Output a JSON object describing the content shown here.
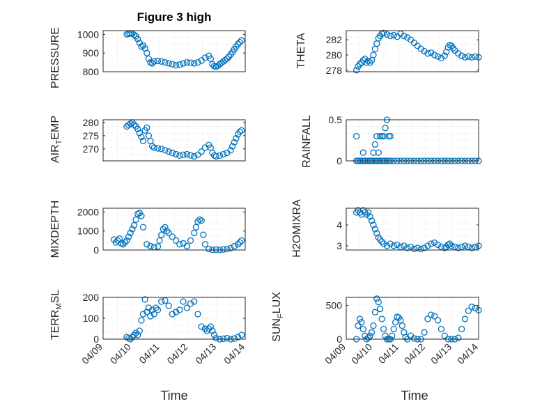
{
  "figure": {
    "title": "Figure 3 high"
  },
  "colors": {
    "marker": "#0072BD",
    "grid": "#d9d9d9",
    "axis": "#262626"
  },
  "xaxis": {
    "label": "Time",
    "range": [
      0,
      5
    ],
    "ticks": [
      0,
      1,
      2,
      3,
      4,
      5
    ],
    "tick_labels": [
      "04/09",
      "04/10",
      "04/11",
      "04/12",
      "04/13",
      "04/14"
    ]
  },
  "chart_data": [
    {
      "type": "scatter",
      "name": "pressure",
      "ylabel": "PRESSURE",
      "ylim": [
        800,
        1020
      ],
      "yticks": [
        800,
        900,
        1000
      ],
      "ytick_labels": [
        "800",
        "900",
        "1000"
      ],
      "grid": true,
      "x": [
        0.75,
        0.8,
        0.85,
        0.9,
        0.95,
        1.0,
        1.05,
        1.1,
        1.15,
        1.2,
        1.25,
        1.3,
        1.35,
        1.4,
        1.45,
        1.5,
        1.6,
        1.7,
        1.8,
        1.9,
        2.0,
        2.1,
        2.2,
        2.3,
        2.4,
        2.5,
        2.6,
        2.7,
        2.8,
        2.9,
        3.0,
        3.05,
        3.1,
        3.15,
        3.2,
        3.25,
        3.3,
        3.35,
        3.4,
        3.45,
        3.5,
        3.55,
        3.6,
        3.65,
        3.7,
        3.75,
        3.8,
        3.85,
        3.9
      ],
      "y": [
        1000,
        1003,
        1005,
        1004,
        998,
        990,
        975,
        955,
        935,
        940,
        925,
        900,
        870,
        850,
        845,
        855,
        858,
        855,
        850,
        845,
        840,
        835,
        838,
        845,
        850,
        848,
        845,
        850,
        860,
        875,
        885,
        870,
        840,
        830,
        828,
        832,
        840,
        848,
        855,
        862,
        870,
        880,
        892,
        905,
        920,
        935,
        948,
        958,
        968
      ]
    },
    {
      "type": "scatter",
      "name": "theta",
      "ylabel": "THETA",
      "ylim": [
        277.8,
        283.2
      ],
      "yticks": [
        278,
        280,
        282
      ],
      "ytick_labels": [
        "278",
        "280",
        "282"
      ],
      "grid": true,
      "x": [
        0.4,
        0.45,
        0.5,
        0.55,
        0.6,
        0.65,
        0.7,
        0.75,
        0.8,
        0.85,
        0.9,
        0.95,
        1.0,
        1.05,
        1.1,
        1.15,
        1.2,
        1.3,
        1.4,
        1.5,
        1.6,
        1.7,
        1.8,
        1.9,
        2.0,
        2.1,
        2.2,
        2.3,
        2.4,
        2.5,
        2.6,
        2.7,
        2.8,
        2.9,
        3.0,
        3.05,
        3.1,
        3.15,
        3.2,
        3.25,
        3.3,
        3.4,
        3.5,
        3.6,
        3.7,
        3.8,
        3.9,
        4.0
      ],
      "y": [
        278.0,
        278.5,
        278.8,
        279.0,
        279.3,
        279.5,
        279.0,
        279.2,
        279.0,
        279.3,
        280.0,
        280.8,
        281.5,
        282.2,
        282.5,
        282.8,
        282.9,
        282.7,
        282.5,
        282.6,
        282.4,
        282.8,
        282.5,
        282.3,
        282.0,
        281.6,
        281.2,
        280.8,
        280.5,
        280.2,
        280.3,
        280.0,
        279.8,
        279.6,
        279.9,
        280.4,
        281.0,
        281.3,
        281.2,
        280.9,
        280.6,
        280.2,
        279.9,
        279.7,
        279.8,
        279.7,
        279.8,
        279.7
      ]
    },
    {
      "type": "scatter",
      "name": "air_temp",
      "ylabel": "AIR_TEMP",
      "ylim": [
        265.5,
        281
      ],
      "yticks": [
        270,
        275,
        280
      ],
      "ytick_labels": [
        "270",
        "275",
        "280"
      ],
      "grid": true,
      "x": [
        0.75,
        0.8,
        0.85,
        0.9,
        0.95,
        1.0,
        1.05,
        1.1,
        1.15,
        1.2,
        1.25,
        1.3,
        1.35,
        1.4,
        1.45,
        1.5,
        1.6,
        1.7,
        1.8,
        1.9,
        2.0,
        2.1,
        2.2,
        2.3,
        2.4,
        2.5,
        2.6,
        2.7,
        2.8,
        2.9,
        3.0,
        3.05,
        3.1,
        3.15,
        3.2,
        3.3,
        3.4,
        3.5,
        3.6,
        3.65,
        3.7,
        3.75,
        3.8,
        3.85,
        3.9
      ],
      "y": [
        278.5,
        279.0,
        279.5,
        280.0,
        279.2,
        278.5,
        277.5,
        276.0,
        274.5,
        273.0,
        277.0,
        278.0,
        275.0,
        273.0,
        271.0,
        270.5,
        270.2,
        270.0,
        269.5,
        269.0,
        268.5,
        268.0,
        267.5,
        267.8,
        268.0,
        267.6,
        267.2,
        267.8,
        269.0,
        270.5,
        271.5,
        270.5,
        268.5,
        267.5,
        267.2,
        267.5,
        268.0,
        268.5,
        269.5,
        271.0,
        272.5,
        274.0,
        275.5,
        276.5,
        277.0
      ]
    },
    {
      "type": "scatter",
      "name": "rainfall",
      "ylabel": "RAINFALL",
      "ylim": [
        0,
        0.5
      ],
      "yticks": [
        0,
        0.5
      ],
      "ytick_labels": [
        "0",
        "0.5"
      ],
      "grid": true,
      "x": [
        0.4,
        0.45,
        0.5,
        0.55,
        0.6,
        0.65,
        0.7,
        0.75,
        0.8,
        0.85,
        0.9,
        0.95,
        1.0,
        1.05,
        1.1,
        1.15,
        1.2,
        1.25,
        1.3,
        1.35,
        1.4,
        1.5,
        1.6,
        1.7,
        1.8,
        1.9,
        2.0,
        2.1,
        2.2,
        2.3,
        2.4,
        2.5,
        2.6,
        2.7,
        2.8,
        2.9,
        3.0,
        3.1,
        3.2,
        3.3,
        3.4,
        3.5,
        3.6,
        3.7,
        3.8,
        3.9,
        4.0,
        0.4,
        0.6,
        0.9,
        0.95,
        1.0,
        1.05,
        1.1,
        1.15,
        1.2,
        1.25,
        1.3,
        1.35,
        1.4
      ],
      "y": [
        0,
        0,
        0,
        0,
        0,
        0,
        0,
        0,
        0,
        0,
        0,
        0,
        0,
        0,
        0,
        0,
        0,
        0,
        0,
        0,
        0,
        0,
        0,
        0,
        0,
        0,
        0,
        0,
        0,
        0,
        0,
        0,
        0,
        0,
        0,
        0,
        0,
        0,
        0,
        0,
        0,
        0,
        0,
        0,
        0,
        0,
        0,
        0.3,
        0.1,
        0.1,
        0.2,
        0.3,
        0.1,
        0.3,
        0.3,
        0.3,
        0.4,
        0.5,
        0.3,
        0.3
      ]
    },
    {
      "type": "scatter",
      "name": "mixdepth",
      "ylabel": "MIXDEPTH",
      "ylim": [
        0,
        2200
      ],
      "yticks": [
        0,
        1000,
        2000
      ],
      "ytick_labels": [
        "0",
        "1000",
        "2000"
      ],
      "grid": true,
      "x": [
        0.4,
        0.45,
        0.5,
        0.55,
        0.6,
        0.65,
        0.7,
        0.75,
        0.8,
        0.85,
        0.9,
        0.95,
        1.0,
        1.05,
        1.1,
        1.15,
        1.2,
        1.3,
        1.4,
        1.5,
        1.6,
        1.65,
        1.7,
        1.75,
        1.8,
        1.85,
        1.9,
        2.0,
        2.1,
        2.2,
        2.3,
        2.4,
        2.5,
        2.6,
        2.65,
        2.7,
        2.75,
        2.8,
        2.85,
        2.9,
        3.0,
        3.1,
        3.2,
        3.3,
        3.4,
        3.5,
        3.6,
        3.7,
        3.8,
        3.85,
        3.9
      ],
      "y": [
        550,
        400,
        500,
        600,
        350,
        300,
        400,
        500,
        700,
        900,
        1100,
        1300,
        1600,
        1900,
        1950,
        1800,
        1200,
        300,
        200,
        150,
        180,
        500,
        800,
        1100,
        1200,
        1000,
        900,
        700,
        500,
        300,
        350,
        200,
        500,
        900,
        1200,
        1500,
        1600,
        1550,
        800,
        300,
        50,
        10,
        20,
        10,
        30,
        50,
        100,
        200,
        300,
        400,
        500
      ]
    },
    {
      "type": "scatter",
      "name": "h2omixra",
      "ylabel": "H2OMIXRA",
      "ylim": [
        2.8,
        4.8
      ],
      "yticks": [
        3,
        4
      ],
      "ytick_labels": [
        "3",
        "4"
      ],
      "grid": true,
      "x": [
        0.4,
        0.45,
        0.5,
        0.55,
        0.6,
        0.65,
        0.7,
        0.75,
        0.8,
        0.85,
        0.9,
        0.95,
        1.0,
        1.05,
        1.1,
        1.15,
        1.2,
        1.3,
        1.4,
        1.5,
        1.6,
        1.7,
        1.8,
        1.9,
        2.0,
        2.1,
        2.2,
        2.3,
        2.4,
        2.5,
        2.6,
        2.7,
        2.8,
        2.9,
        3.0,
        3.05,
        3.1,
        3.15,
        3.2,
        3.3,
        3.4,
        3.5,
        3.6,
        3.7,
        3.8,
        3.9,
        4.0
      ],
      "y": [
        4.6,
        4.7,
        4.6,
        4.5,
        4.7,
        4.6,
        4.5,
        4.6,
        4.4,
        4.2,
        4.0,
        3.8,
        3.6,
        3.4,
        3.3,
        3.2,
        3.1,
        3.0,
        3.1,
        3.0,
        3.05,
        2.95,
        3.0,
        2.9,
        2.95,
        2.85,
        2.9,
        2.85,
        2.9,
        3.0,
        3.1,
        3.15,
        3.05,
        2.95,
        2.9,
        2.95,
        3.05,
        3.1,
        3.0,
        2.95,
        2.9,
        2.95,
        3.0,
        2.95,
        2.9,
        2.95,
        3.0
      ]
    },
    {
      "type": "scatter",
      "name": "terr_msl",
      "ylabel": "TERR_MSL",
      "ylim": [
        0,
        200
      ],
      "yticks": [
        0,
        100,
        200
      ],
      "ytick_labels": [
        "0",
        "100",
        "200"
      ],
      "grid": true,
      "x": [
        0.75,
        0.8,
        0.85,
        0.9,
        0.95,
        1.0,
        1.05,
        1.1,
        1.15,
        1.2,
        1.25,
        1.3,
        1.35,
        1.4,
        1.45,
        1.5,
        1.55,
        1.6,
        1.7,
        1.8,
        1.9,
        2.0,
        2.1,
        2.2,
        2.3,
        2.4,
        2.5,
        2.6,
        2.7,
        2.8,
        2.9,
        2.95,
        3.0,
        3.05,
        3.1,
        3.15,
        3.2,
        3.3,
        3.4,
        3.5,
        3.6,
        3.7,
        3.8,
        3.9
      ],
      "y": [
        10,
        5,
        0,
        10,
        20,
        30,
        20,
        40,
        90,
        120,
        190,
        130,
        150,
        110,
        140,
        120,
        150,
        140,
        180,
        185,
        160,
        120,
        130,
        140,
        180,
        150,
        170,
        180,
        120,
        60,
        50,
        40,
        50,
        60,
        40,
        20,
        5,
        0,
        2,
        5,
        0,
        3,
        10,
        20
      ]
    },
    {
      "type": "scatter",
      "name": "sun_flux",
      "ylabel": "SUN_FLUX",
      "ylim": [
        0,
        620
      ],
      "yticks": [
        0,
        500
      ],
      "ytick_labels": [
        "0",
        "500"
      ],
      "grid": true,
      "x": [
        0.4,
        0.45,
        0.5,
        0.55,
        0.6,
        0.65,
        0.7,
        0.75,
        0.8,
        0.85,
        0.9,
        0.95,
        1.0,
        1.05,
        1.1,
        1.15,
        1.2,
        1.25,
        1.3,
        1.35,
        1.4,
        1.45,
        1.5,
        1.55,
        1.6,
        1.65,
        1.7,
        1.75,
        1.8,
        1.85,
        1.9,
        2.0,
        2.1,
        2.2,
        2.3,
        2.4,
        2.5,
        2.6,
        2.7,
        2.8,
        2.9,
        3.0,
        3.1,
        3.2,
        3.3,
        3.4,
        3.5,
        3.6,
        3.7,
        3.8,
        3.9,
        4.0
      ],
      "y": [
        0,
        200,
        300,
        250,
        150,
        50,
        0,
        20,
        50,
        100,
        200,
        400,
        600,
        550,
        450,
        300,
        150,
        50,
        0,
        0,
        0,
        50,
        150,
        250,
        330,
        320,
        280,
        200,
        100,
        30,
        0,
        50,
        10,
        0,
        0,
        100,
        300,
        360,
        340,
        280,
        150,
        50,
        0,
        0,
        0,
        20,
        150,
        300,
        420,
        480,
        460,
        430
      ]
    }
  ]
}
